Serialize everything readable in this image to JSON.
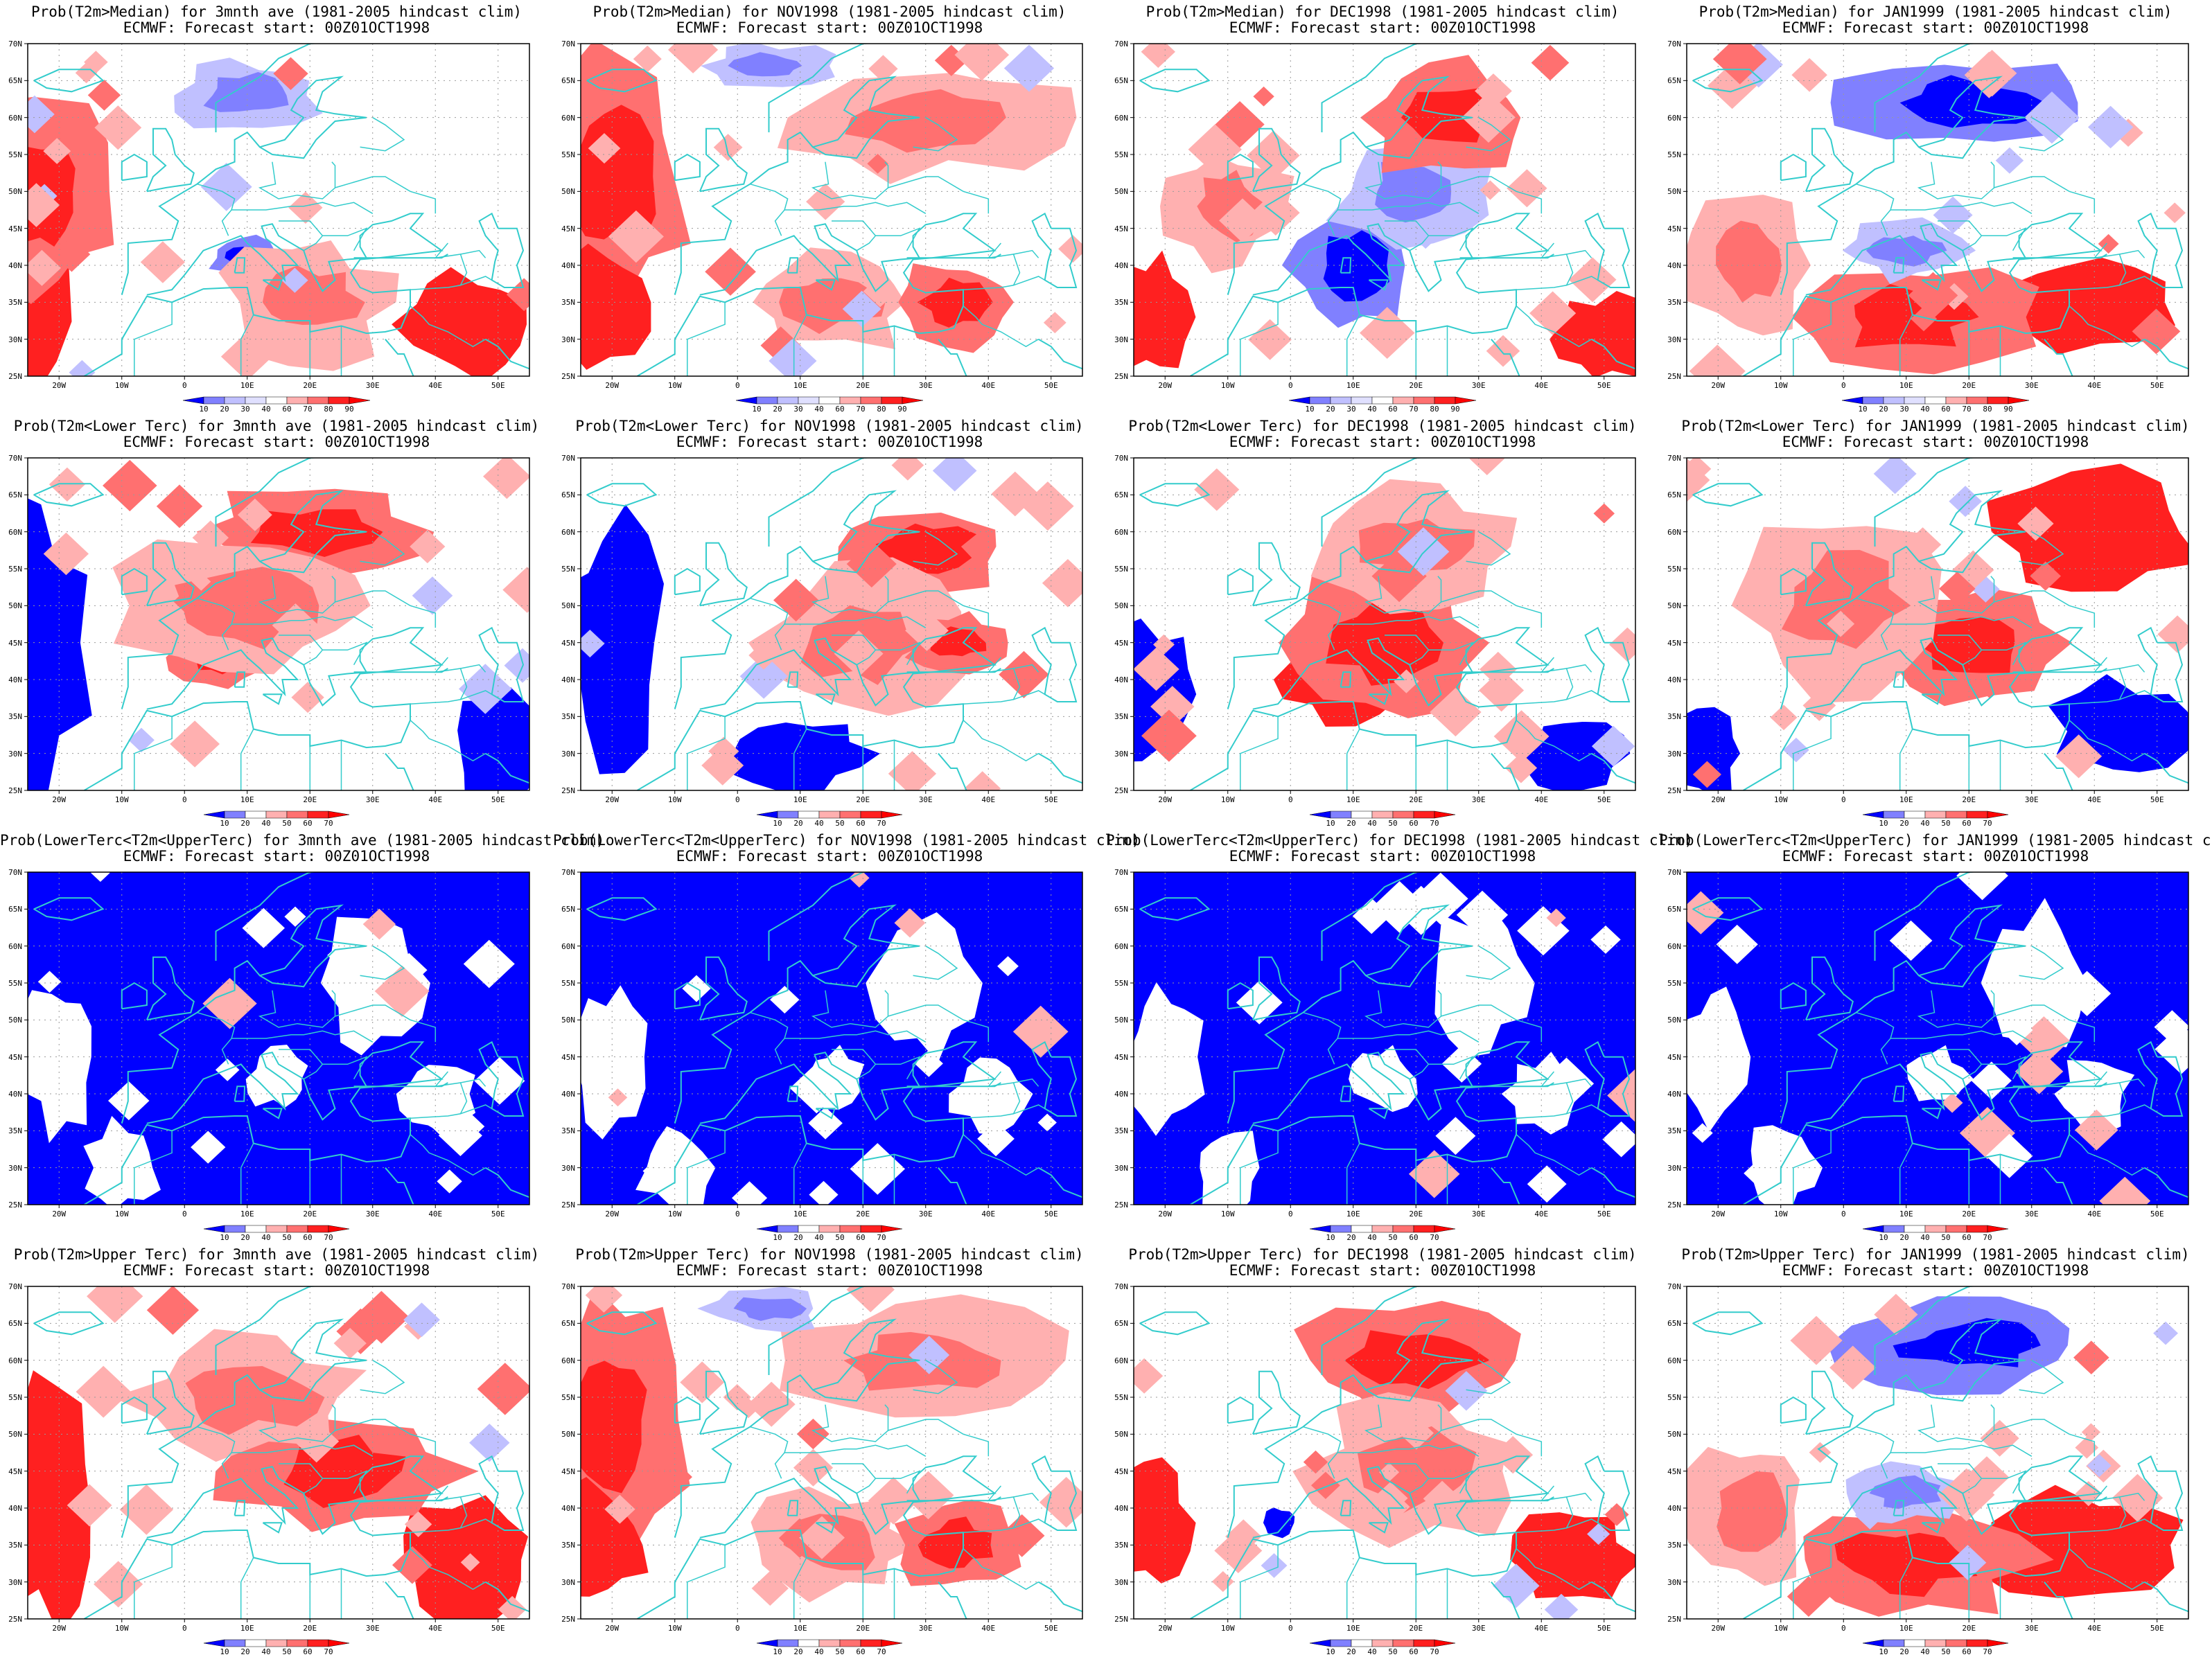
{
  "figure": {
    "source_line": "ECMWF: Forecast start: 00Z01OCT1998",
    "lat_ticks": [
      "70N",
      "65N",
      "60N",
      "55N",
      "50N",
      "45N",
      "40N",
      "35N",
      "30N",
      "25N"
    ],
    "lon_ticks": [
      "20W",
      "10W",
      "0",
      "10E",
      "20E",
      "30E",
      "40E",
      "50E"
    ],
    "lon_range": [
      -25,
      55
    ],
    "lat_range": [
      25,
      70
    ],
    "colors": {
      "blue_dark": "#0000ff",
      "blue_mid": "#8080ff",
      "blue_light": "#c0c0ff",
      "red_light": "#ffb0b0",
      "red_mid": "#ff7070",
      "red_dark": "#ff2020",
      "red_max": "#ff0000",
      "coast": "#33cccc"
    }
  },
  "rows": [
    {
      "variable": "Prob(T2m>Median)",
      "legend_levels": [
        "10",
        "20",
        "30",
        "40",
        "60",
        "70",
        "80",
        "90"
      ],
      "panels": [
        {
          "title": "Prob(T2m>Median) for 3mnth ave (1981-2005 hindcast clim)",
          "signal": "mixed-warm"
        },
        {
          "title": "Prob(T2m>Median) for NOV1998 (1981-2005 hindcast clim)",
          "signal": "warm-west"
        },
        {
          "title": "Prob(T2m>Median) for DEC1998 (1981-2005 hindcast clim)",
          "signal": "cool-central"
        },
        {
          "title": "Prob(T2m>Median) for JAN1999 (1981-2005 hindcast clim)",
          "signal": "warm-south"
        }
      ]
    },
    {
      "variable": "Prob(T2m<Lower Terc)",
      "legend_levels": [
        "10",
        "20",
        "40",
        "50",
        "60",
        "70"
      ],
      "panels": [
        {
          "title": "Prob(T2m<Lower Terc) for 3mnth ave (1981-2005 hindcast clim)",
          "signal": "cold-north"
        },
        {
          "title": "Prob(T2m<Lower Terc) for NOV1998 (1981-2005 hindcast clim)",
          "signal": "cold-east"
        },
        {
          "title": "Prob(T2m<Lower Terc) for DEC1998 (1981-2005 hindcast clim)",
          "signal": "cold-central"
        },
        {
          "title": "Prob(T2m<Lower Terc) for JAN1999 (1981-2005 hindcast clim)",
          "signal": "cold-northeast"
        }
      ]
    },
    {
      "variable": "Prob(LowerTerc<T2m<UpperTerc)",
      "legend_levels": [
        "10",
        "20",
        "40",
        "50",
        "60",
        "70"
      ],
      "panels": [
        {
          "title": "Prob(LowerTerc<T2m<UpperTerc) for 3mnth ave (1981-2005 hindcast clim)",
          "signal": "low"
        },
        {
          "title": "Prob(LowerTerc<T2m<UpperTerc) for NOV1998 (1981-2005 hindcast clim)",
          "signal": "low"
        },
        {
          "title": "Prob(LowerTerc<T2m<UpperTerc) for DEC1998 (1981-2005 hindcast clim)",
          "signal": "low"
        },
        {
          "title": "Prob(LowerTerc<T2m<UpperTerc) for JAN1999 (1981-2005 hindcast clim)",
          "signal": "low"
        }
      ]
    },
    {
      "variable": "Prob(T2m>Upper Terc)",
      "legend_levels": [
        "10",
        "20",
        "40",
        "50",
        "60",
        "70"
      ],
      "panels": [
        {
          "title": "Prob(T2m>Upper Terc) for 3mnth ave (1981-2005 hindcast clim)",
          "signal": "warm-west-south"
        },
        {
          "title": "Prob(T2m>Upper Terc) for NOV1998 (1981-2005 hindcast clim)",
          "signal": "warm-west"
        },
        {
          "title": "Prob(T2m>Upper Terc) for DEC1998 (1981-2005 hindcast clim)",
          "signal": "warm-north-east"
        },
        {
          "title": "Prob(T2m>Upper Terc) for JAN1999 (1981-2005 hindcast clim)",
          "signal": "warm-south"
        }
      ]
    }
  ]
}
